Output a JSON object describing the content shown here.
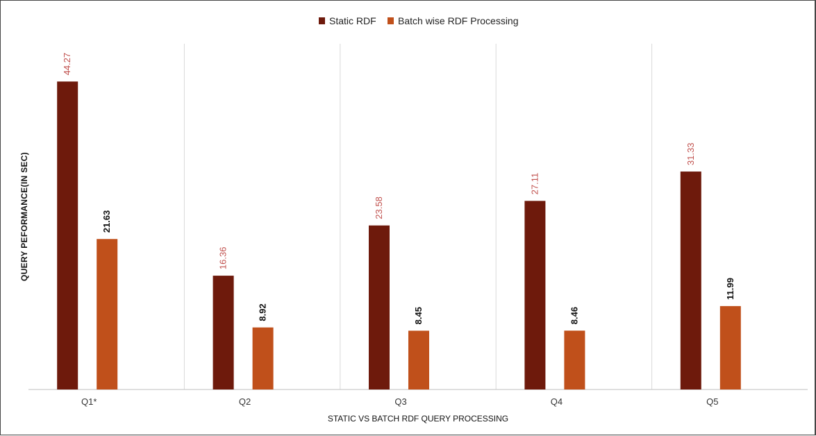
{
  "chart_data": {
    "type": "bar",
    "categories": [
      "Q1*",
      "Q2",
      "Q3",
      "Q4",
      "Q5"
    ],
    "series": [
      {
        "name": "Static RDF",
        "values": [
          44.27,
          16.36,
          23.58,
          27.11,
          31.33
        ],
        "color": "#6e1a0c",
        "label_color": "#c0504d"
      },
      {
        "name": "Batch wise RDF Processing",
        "values": [
          21.63,
          8.92,
          8.45,
          8.46,
          11.99
        ],
        "color": "#c0501b",
        "label_color": "#111111"
      }
    ],
    "title": "",
    "xlabel": "STATIC VS BATCH RDF QUERY PROCESSING",
    "ylabel": "QUERY PEFORMANCE(IN SEC)",
    "ylim": [
      0,
      50
    ],
    "grid": "vertical separators between categories",
    "legend": "top-center"
  }
}
